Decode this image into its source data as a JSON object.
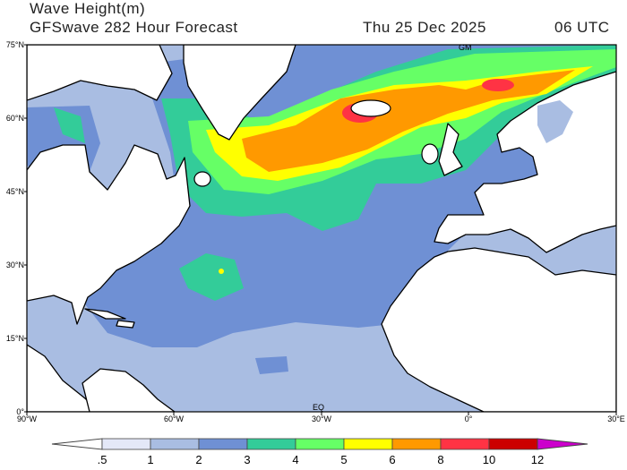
{
  "title": {
    "line1": "Wave Height(m)",
    "model": "GFSwave 282 Hour Forecast",
    "date": "Thu 25 Dec 2025",
    "time": "06 UTC"
  },
  "map": {
    "lon_range": [
      -90,
      30
    ],
    "lat_range": [
      0,
      75
    ],
    "lat_labels": [
      "75°N",
      "60°N",
      "45°N",
      "30°N",
      "15°N",
      "0°"
    ],
    "lon_labels": [
      "90°W",
      "60°W",
      "30°W",
      "0°",
      "30°E"
    ],
    "markers": {
      "greenwich": "GM",
      "equator": "EQ"
    },
    "land_color": "#ffffff",
    "coast_color": "#000000"
  },
  "colorbar": {
    "levels": [
      ".5",
      "1",
      "2",
      "3",
      "4",
      "5",
      "6",
      "8",
      "10",
      "12"
    ],
    "under_color": "#ffffff",
    "colors": [
      "#e4e8f8",
      "#a9bde2",
      "#6f90d4",
      "#33cc99",
      "#66ff66",
      "#ffff00",
      "#ff9900",
      "#ff3344",
      "#cc0000"
    ],
    "over_color": "#cc00cc"
  }
}
